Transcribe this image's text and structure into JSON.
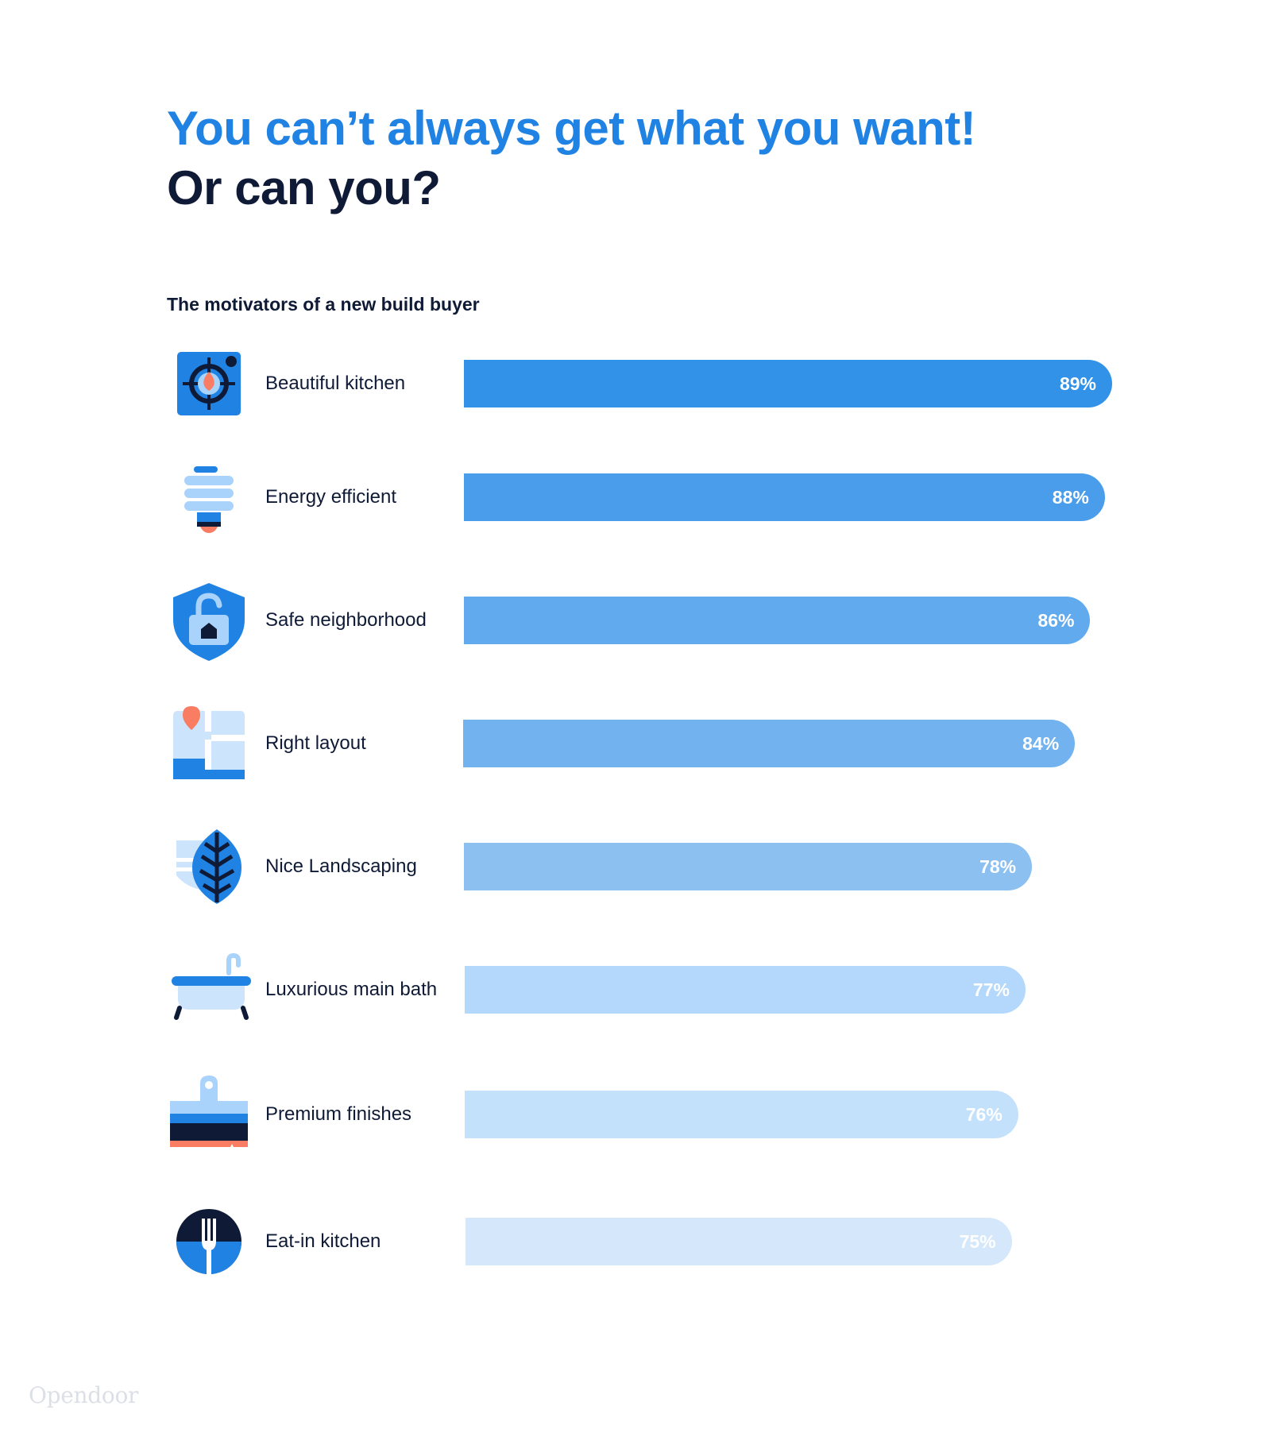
{
  "title": {
    "line1": "You can’t always get what you want!",
    "line2": "Or can you?"
  },
  "chart_data": {
    "type": "bar",
    "orientation": "horizontal",
    "title": "You can’t always get what you want! Or can you?",
    "subtitle": "The motivators of a new build buyer",
    "categories": [
      "Beautiful kitchen",
      "Energy efficient",
      "Safe neighborhood",
      "Right layout",
      "Nice Landscaping",
      "Luxurious main bath",
      "Premium finishes",
      "Eat-in kitchen"
    ],
    "values": [
      89,
      88,
      86,
      84,
      78,
      77,
      76,
      75
    ],
    "value_labels": [
      "89%",
      "88%",
      "86%",
      "84%",
      "78%",
      "77%",
      "76%",
      "75%"
    ],
    "unit": "%",
    "bar_colors": [
      "#3292e7",
      "#4a9deb",
      "#61aaee",
      "#72b2ee",
      "#8cc0f1",
      "#b3d8fb",
      "#c4e1fc",
      "#d5e8fb"
    ],
    "icons": [
      "stove-icon",
      "lightbulb-icon",
      "shield-lock-icon",
      "floorplan-icon",
      "leaf-icon",
      "bathtub-icon",
      "paintbrush-icon",
      "fork-plate-icon"
    ],
    "grid": false,
    "legend": "none"
  },
  "brand": "Opendoor"
}
